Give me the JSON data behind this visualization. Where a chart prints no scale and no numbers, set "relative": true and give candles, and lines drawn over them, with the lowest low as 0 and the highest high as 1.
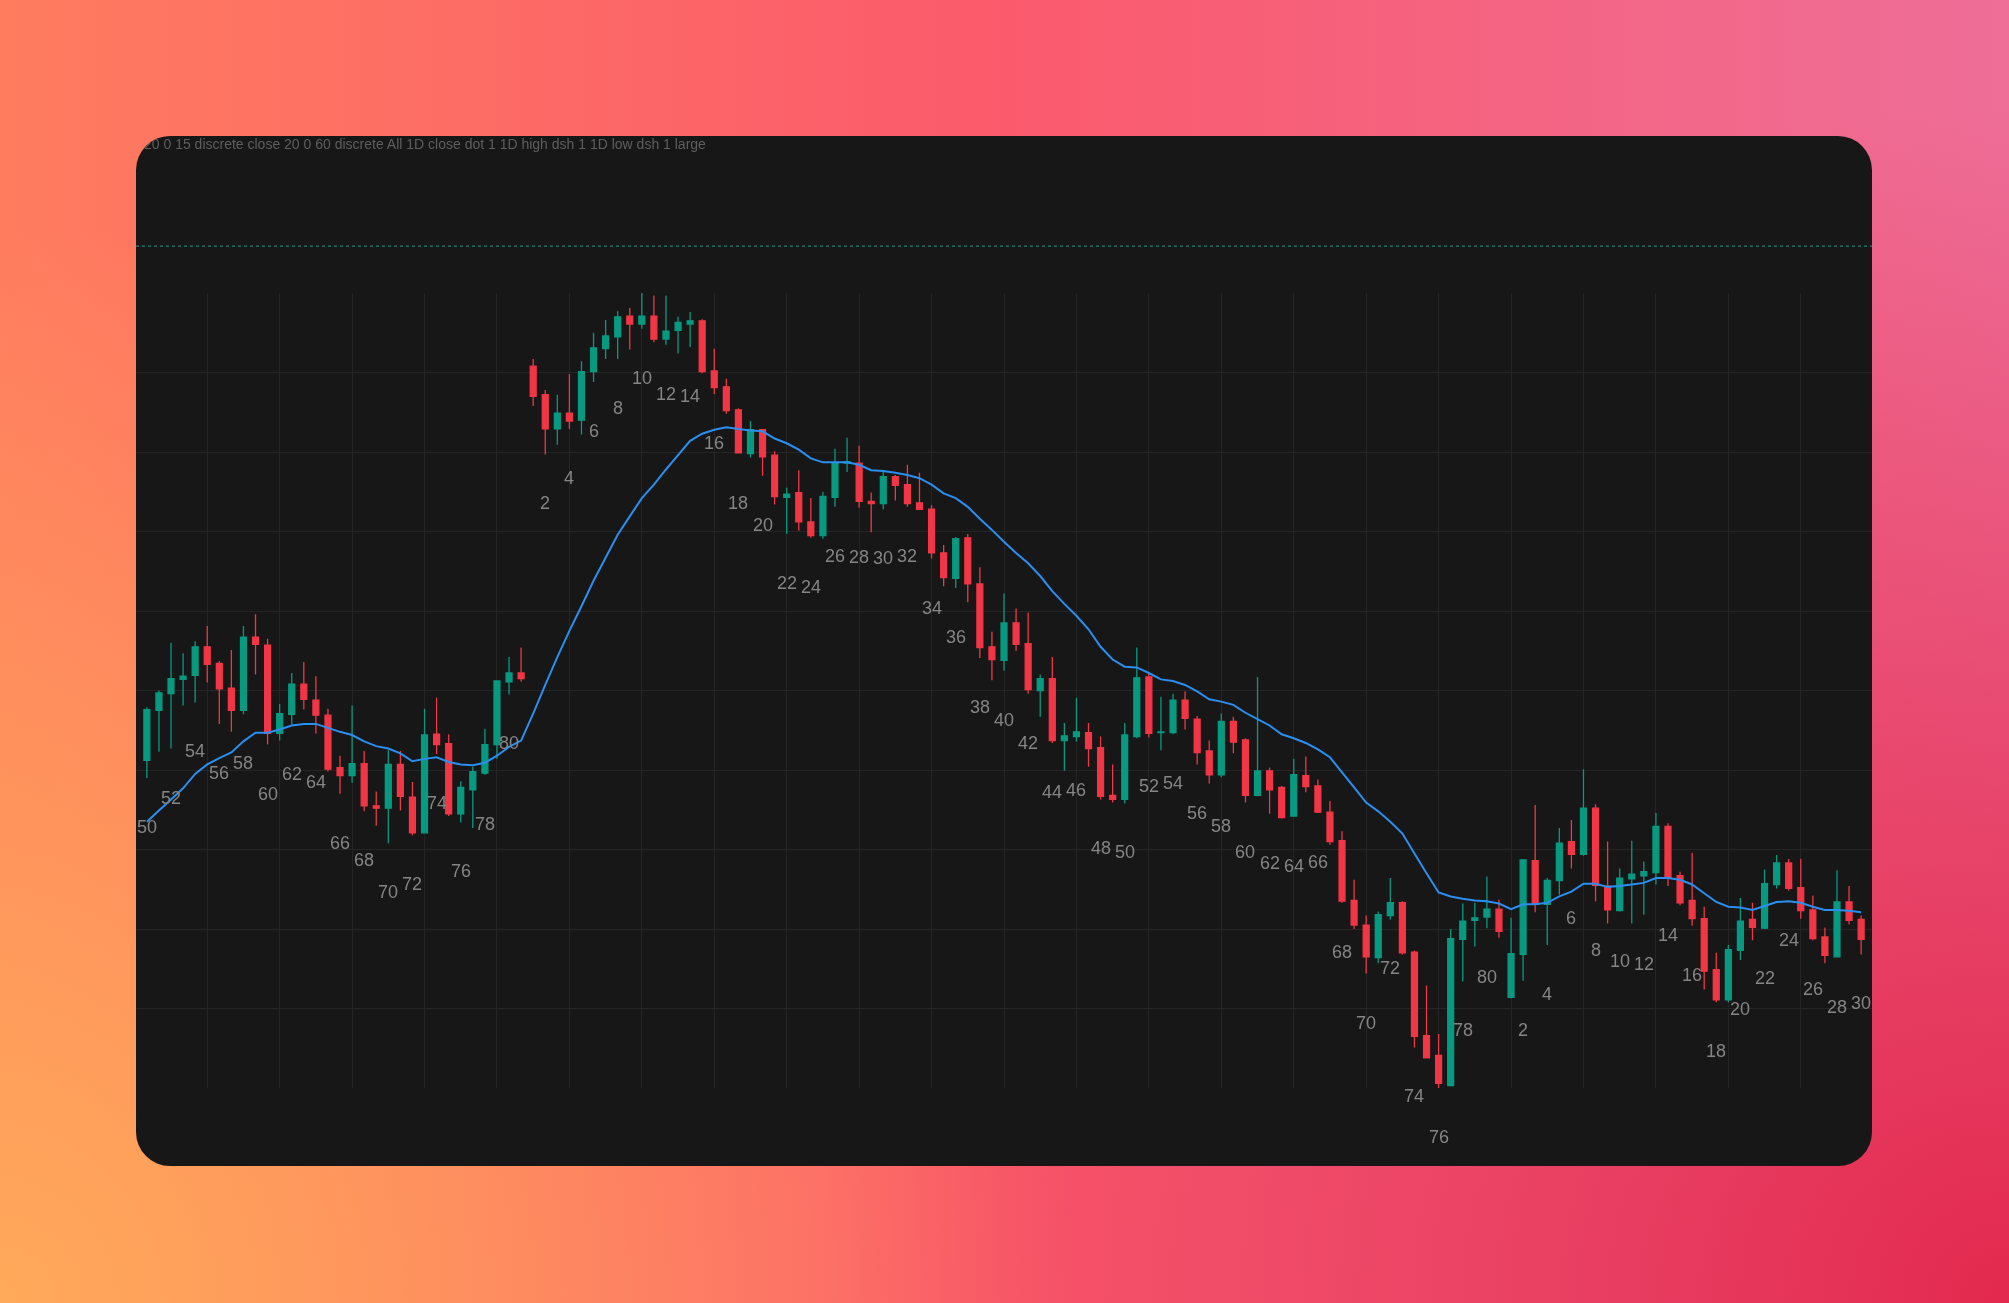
{
  "chart_data": {
    "type": "candlestick",
    "title": "20 0 15 discrete close 20 0 60 discrete All 1D close dot 1 1D high dsh 1 1D low dsh 1 large",
    "relative": true,
    "grid": true,
    "tick_labels": false,
    "categories": [
      null,
      null,
      null,
      null,
      null,
      null,
      null,
      null,
      null,
      null,
      null,
      null,
      null,
      null,
      null,
      null,
      null,
      null,
      null,
      null,
      null,
      null,
      null,
      null,
      null,
      null,
      null,
      null,
      null,
      null,
      null,
      null,
      null,
      null,
      null,
      null,
      null,
      null,
      null,
      null,
      null,
      null,
      null,
      null,
      null,
      null,
      null,
      null,
      null,
      null,
      null,
      null,
      null,
      null,
      null,
      null,
      null,
      null,
      null,
      null,
      null,
      null,
      null,
      null,
      null,
      null,
      null,
      null,
      null,
      null,
      null,
      null,
      null,
      null,
      null,
      null,
      null,
      null,
      null,
      null,
      null,
      null,
      null,
      null,
      null,
      null,
      null,
      null,
      null,
      null,
      null,
      null,
      null,
      null,
      null,
      null,
      null,
      null,
      null,
      null,
      null,
      null,
      null,
      null,
      null,
      null,
      null,
      null,
      null,
      null,
      null,
      null,
      null,
      null,
      null,
      null,
      null,
      null,
      null,
      null,
      null,
      null,
      null,
      null,
      null,
      null,
      null,
      null,
      null,
      null,
      null,
      null,
      null,
      null,
      null,
      null,
      null,
      null,
      null,
      null,
      null,
      null,
      null
    ],
    "ohlc": [
      [
        0.412,
        0.479,
        0.39,
        0.476
      ],
      [
        0.475,
        0.5,
        0.423,
        0.497
      ],
      [
        0.496,
        0.56,
        0.427,
        0.515
      ],
      [
        0.514,
        0.547,
        0.481,
        0.518
      ],
      [
        0.519,
        0.562,
        0.485,
        0.555
      ],
      [
        0.555,
        0.581,
        0.51,
        0.533
      ],
      [
        0.534,
        0.537,
        0.458,
        0.502
      ],
      [
        0.503,
        0.551,
        0.448,
        0.475
      ],
      [
        0.475,
        0.581,
        0.47,
        0.567
      ],
      [
        0.567,
        0.596,
        0.52,
        0.558
      ],
      [
        0.557,
        0.565,
        0.432,
        0.446
      ],
      [
        0.446,
        0.483,
        0.437,
        0.471
      ],
      [
        0.47,
        0.522,
        0.457,
        0.508
      ],
      [
        0.508,
        0.536,
        0.476,
        0.489
      ],
      [
        0.488,
        0.518,
        0.446,
        0.469
      ],
      [
        0.469,
        0.477,
        0.398,
        0.401
      ],
      [
        0.403,
        0.418,
        0.37,
        0.393
      ],
      [
        0.393,
        0.481,
        0.384,
        0.408
      ],
      [
        0.408,
        0.424,
        0.348,
        0.355
      ],
      [
        0.355,
        0.373,
        0.33,
        0.352
      ],
      [
        0.352,
        0.425,
        0.308,
        0.407
      ],
      [
        0.407,
        0.424,
        0.349,
        0.367
      ],
      [
        0.366,
        0.385,
        0.318,
        0.321
      ],
      [
        0.321,
        0.477,
        0.32,
        0.444
      ],
      [
        0.445,
        0.491,
        0.42,
        0.432
      ],
      [
        0.433,
        0.445,
        0.342,
        0.345
      ],
      [
        0.345,
        0.386,
        0.334,
        0.378
      ],
      [
        0.375,
        0.404,
        0.327,
        0.398
      ],
      [
        0.396,
        0.452,
        0.394,
        0.432
      ],
      [
        0.432,
        0.512,
        0.414,
        0.512
      ],
      [
        0.511,
        0.542,
        0.495,
        0.522
      ],
      [
        0.522,
        0.554,
        0.511,
        0.515
      ],
      [
        0.908,
        0.917,
        0.858,
        0.87
      ],
      [
        0.872,
        0.878,
        0.797,
        0.829
      ],
      [
        0.829,
        0.872,
        0.809,
        0.849
      ],
      [
        0.849,
        0.898,
        0.829,
        0.839
      ],
      [
        0.84,
        0.914,
        0.822,
        0.901
      ],
      [
        0.901,
        0.95,
        0.888,
        0.931
      ],
      [
        0.93,
        0.966,
        0.917,
        0.946
      ],
      [
        0.945,
        0.977,
        0.917,
        0.97
      ],
      [
        0.971,
        0.981,
        0.929,
        0.961
      ],
      [
        0.961,
        1.0,
        0.955,
        0.971
      ],
      [
        0.971,
        0.997,
        0.938,
        0.942
      ],
      [
        0.942,
        0.997,
        0.935,
        0.952
      ],
      [
        0.953,
        0.97,
        0.924,
        0.963
      ],
      [
        0.961,
        0.976,
        0.932,
        0.965
      ],
      [
        0.965,
        0.967,
        0.899,
        0.901
      ],
      [
        0.902,
        0.93,
        0.873,
        0.881
      ],
      [
        0.882,
        0.892,
        0.848,
        0.852
      ],
      [
        0.853,
        0.855,
        0.798,
        0.799
      ],
      [
        0.798,
        0.839,
        0.793,
        0.828
      ],
      [
        0.828,
        0.829,
        0.77,
        0.794
      ],
      [
        0.796,
        0.801,
        0.734,
        0.744
      ],
      [
        0.743,
        0.755,
        0.697,
        0.747
      ],
      [
        0.749,
        0.777,
        0.701,
        0.712
      ],
      [
        0.712,
        0.742,
        0.692,
        0.695
      ],
      [
        0.695,
        0.75,
        0.691,
        0.744
      ],
      [
        0.743,
        0.804,
        0.731,
        0.786
      ],
      [
        0.786,
        0.818,
        0.775,
        0.788
      ],
      [
        0.786,
        0.808,
        0.73,
        0.738
      ],
      [
        0.738,
        0.749,
        0.699,
        0.735
      ],
      [
        0.735,
        0.776,
        0.728,
        0.769
      ],
      [
        0.769,
        0.771,
        0.739,
        0.758
      ],
      [
        0.759,
        0.784,
        0.731,
        0.735
      ],
      [
        0.736,
        0.774,
        0.727,
        0.728
      ],
      [
        0.728,
        0.733,
        0.666,
        0.673
      ],
      [
        0.673,
        0.683,
        0.631,
        0.642
      ],
      [
        0.641,
        0.693,
        0.629,
        0.691
      ],
      [
        0.692,
        0.697,
        0.611,
        0.634
      ],
      [
        0.634,
        0.655,
        0.541,
        0.554
      ],
      [
        0.555,
        0.574,
        0.513,
        0.539
      ],
      [
        0.538,
        0.622,
        0.525,
        0.585
      ],
      [
        0.585,
        0.603,
        0.55,
        0.558
      ],
      [
        0.559,
        0.598,
        0.496,
        0.501
      ],
      [
        0.5,
        0.52,
        0.467,
        0.515
      ],
      [
        0.515,
        0.542,
        0.434,
        0.437
      ],
      [
        0.437,
        0.459,
        0.399,
        0.443
      ],
      [
        0.442,
        0.491,
        0.436,
        0.448
      ],
      [
        0.447,
        0.459,
        0.404,
        0.427
      ],
      [
        0.428,
        0.442,
        0.363,
        0.367
      ],
      [
        0.368,
        0.407,
        0.359,
        0.363
      ],
      [
        0.363,
        0.459,
        0.358,
        0.444
      ],
      [
        0.442,
        0.554,
        0.44,
        0.516
      ],
      [
        0.517,
        0.521,
        0.441,
        0.446
      ],
      [
        0.447,
        0.492,
        0.425,
        0.448
      ],
      [
        0.447,
        0.496,
        0.445,
        0.488
      ],
      [
        0.488,
        0.499,
        0.451,
        0.465
      ],
      [
        0.464,
        0.468,
        0.407,
        0.422
      ],
      [
        0.424,
        0.437,
        0.383,
        0.394
      ],
      [
        0.394,
        0.471,
        0.391,
        0.461
      ],
      [
        0.461,
        0.467,
        0.421,
        0.435
      ],
      [
        0.438,
        0.44,
        0.359,
        0.368
      ],
      [
        0.368,
        0.517,
        0.367,
        0.399
      ],
      [
        0.399,
        0.403,
        0.345,
        0.375
      ],
      [
        0.378,
        0.38,
        0.339,
        0.34
      ],
      [
        0.342,
        0.414,
        0.341,
        0.394
      ],
      [
        0.393,
        0.417,
        0.372,
        0.379
      ],
      [
        0.38,
        0.388,
        0.346,
        0.347
      ],
      [
        0.347,
        0.361,
        0.306,
        0.31
      ],
      [
        0.311,
        0.323,
        0.233,
        0.235
      ],
      [
        0.236,
        0.262,
        0.2,
        0.205
      ],
      [
        0.205,
        0.217,
        0.144,
        0.165
      ],
      [
        0.164,
        0.222,
        0.157,
        0.218
      ],
      [
        0.217,
        0.264,
        0.212,
        0.233
      ],
      [
        0.233,
        0.235,
        0.168,
        0.17
      ],
      [
        0.171,
        0.173,
        0.051,
        0.065
      ],
      [
        0.066,
        0.129,
        0.037,
        0.038
      ],
      [
        0.041,
        0.068,
        0.0,
        0.006
      ],
      [
        0.003,
        0.2,
        0.002,
        0.188
      ],
      [
        0.187,
        0.232,
        0.134,
        0.21
      ],
      [
        0.211,
        0.233,
        0.178,
        0.214
      ],
      [
        0.215,
        0.266,
        0.201,
        0.225
      ],
      [
        0.225,
        0.237,
        0.189,
        0.197
      ],
      [
        0.114,
        0.214,
        0.113,
        0.169
      ],
      [
        0.168,
        0.288,
        0.135,
        0.287
      ],
      [
        0.286,
        0.356,
        0.221,
        0.231
      ],
      [
        0.231,
        0.264,
        0.18,
        0.261
      ],
      [
        0.261,
        0.327,
        0.243,
        0.308
      ],
      [
        0.31,
        0.337,
        0.276,
        0.294
      ],
      [
        0.294,
        0.401,
        0.292,
        0.352
      ],
      [
        0.352,
        0.357,
        0.235,
        0.255
      ],
      [
        0.254,
        0.31,
        0.207,
        0.224
      ],
      [
        0.223,
        0.276,
        0.222,
        0.264
      ],
      [
        0.263,
        0.311,
        0.207,
        0.269
      ],
      [
        0.267,
        0.285,
        0.218,
        0.272
      ],
      [
        0.271,
        0.346,
        0.256,
        0.329
      ],
      [
        0.329,
        0.333,
        0.254,
        0.265
      ],
      [
        0.267,
        0.272,
        0.23,
        0.233
      ],
      [
        0.236,
        0.296,
        0.204,
        0.213
      ],
      [
        0.213,
        0.228,
        0.124,
        0.147
      ],
      [
        0.149,
        0.17,
        0.108,
        0.111
      ],
      [
        0.111,
        0.18,
        0.108,
        0.174
      ],
      [
        0.173,
        0.239,
        0.161,
        0.21
      ],
      [
        0.212,
        0.233,
        0.186,
        0.202
      ],
      [
        0.201,
        0.275,
        0.2,
        0.257
      ],
      [
        0.256,
        0.293,
        0.251,
        0.283
      ],
      [
        0.283,
        0.288,
        0.248,
        0.251
      ],
      [
        0.252,
        0.288,
        0.213,
        0.223
      ],
      [
        0.224,
        0.242,
        0.186,
        0.188
      ],
      [
        0.19,
        0.202,
        0.157,
        0.167
      ],
      [
        0.165,
        0.274,
        0.164,
        0.234
      ],
      [
        0.234,
        0.254,
        0.206,
        0.211
      ],
      [
        0.212,
        0.217,
        0.168,
        0.187
      ]
    ],
    "colors": [
      "#089981",
      "#089981",
      "#089981",
      "#089981",
      "#089981",
      "#f23645",
      "#f23645",
      "#f23645",
      "#089981",
      "#f23645",
      "#f23645",
      "#089981",
      "#089981",
      "#f23645",
      "#f23645",
      "#f23645",
      "#f23645",
      "#089981",
      "#f23645",
      "#f23645",
      "#089981",
      "#f23645",
      "#f23645",
      "#089981",
      "#f23645",
      "#f23645",
      "#089981",
      "#089981",
      "#089981",
      "#089981",
      "#089981",
      "#f23645",
      "#f23645",
      "#f23645",
      "#089981",
      "#f23645",
      "#089981",
      "#089981",
      "#089981",
      "#089981",
      "#f23645",
      "#089981",
      "#f23645",
      "#089981",
      "#089981",
      "#089981",
      "#f23645",
      "#f23645",
      "#f23645",
      "#f23645",
      "#089981",
      "#f23645",
      "#f23645",
      "#089981",
      "#f23645",
      "#f23645",
      "#089981",
      "#089981",
      "#089981",
      "#f23645",
      "#f23645",
      "#089981",
      "#f23645",
      "#f23645",
      "#f23645",
      "#f23645",
      "#f23645",
      "#089981",
      "#f23645",
      "#f23645",
      "#f23645",
      "#089981",
      "#f23645",
      "#f23645",
      "#089981",
      "#f23645",
      "#089981",
      "#089981",
      "#f23645",
      "#f23645",
      "#f23645",
      "#089981",
      "#089981",
      "#f23645",
      "#089981",
      "#089981",
      "#f23645",
      "#f23645",
      "#f23645",
      "#089981",
      "#f23645",
      "#f23645",
      "#089981",
      "#f23645",
      "#f23645",
      "#089981",
      "#f23645",
      "#f23645",
      "#f23645",
      "#f23645",
      "#f23645",
      "#f23645",
      "#089981",
      "#089981",
      "#f23645",
      "#f23645",
      "#f23645",
      "#f23645",
      "#089981",
      "#089981",
      "#089981",
      "#089981",
      "#f23645",
      "#089981",
      "#089981",
      "#f23645",
      "#089981",
      "#089981",
      "#f23645",
      "#089981",
      "#f23645",
      "#f23645",
      "#089981",
      "#089981",
      "#089981",
      "#089981",
      "#f23645",
      "#f23645",
      "#f23645",
      "#f23645",
      "#f23645",
      "#089981",
      "#089981",
      "#f23645",
      "#089981",
      "#089981",
      "#f23645",
      "#f23645",
      "#f23645",
      "#f23645",
      "#089981",
      "#f23645",
      "#f23645"
    ],
    "value_labels": [
      "50",
      null,
      "52",
      null,
      "54",
      null,
      "56",
      null,
      "58",
      null,
      "60",
      null,
      "62",
      null,
      "64",
      null,
      "66",
      null,
      "68",
      null,
      "70",
      null,
      "72",
      null,
      "74",
      null,
      "76",
      null,
      "78",
      null,
      "80",
      null,
      null,
      "2",
      null,
      "4",
      null,
      "6",
      null,
      "8",
      null,
      "10",
      null,
      "12",
      null,
      "14",
      null,
      "16",
      null,
      "18",
      null,
      "20",
      null,
      "22",
      null,
      "24",
      null,
      "26",
      null,
      "28",
      null,
      "30",
      null,
      "32",
      null,
      "34",
      null,
      "36",
      null,
      "38",
      null,
      "40",
      null,
      "42",
      null,
      "44",
      null,
      "46",
      null,
      "48",
      null,
      "50",
      null,
      "52",
      null,
      "54",
      null,
      "56",
      null,
      "58",
      null,
      "60",
      null,
      "62",
      null,
      "64",
      null,
      "66",
      null,
      "68",
      null,
      "70",
      null,
      "72",
      null,
      "74",
      null,
      "76",
      null,
      "78",
      null,
      "80",
      null,
      null,
      "2",
      null,
      "4",
      null,
      "6",
      null,
      "8",
      null,
      "10",
      null,
      "12",
      null,
      "14",
      null,
      "16",
      null,
      "18",
      null,
      "20",
      null,
      "22",
      null,
      "24",
      null,
      "26",
      null,
      "28",
      null,
      "30"
    ],
    "series": [
      {
        "type": "line",
        "color": "#2a8ff0",
        "values": [
          0.335,
          0.349,
          0.363,
          0.377,
          0.395,
          0.407,
          0.415,
          0.422,
          0.436,
          0.447,
          0.447,
          0.451,
          0.456,
          0.458,
          0.458,
          0.453,
          0.448,
          0.444,
          0.436,
          0.43,
          0.427,
          0.421,
          0.411,
          0.414,
          0.416,
          0.41,
          0.407,
          0.406,
          0.409,
          0.418,
          0.429,
          0.437,
          0.471,
          0.507,
          0.542,
          0.575,
          0.606,
          0.638,
          0.667,
          0.696,
          0.719,
          0.742,
          0.759,
          0.778,
          0.796,
          0.814,
          0.823,
          0.828,
          0.831,
          0.829,
          0.827,
          0.826,
          0.817,
          0.811,
          0.803,
          0.792,
          0.787,
          0.787,
          0.787,
          0.784,
          0.777,
          0.776,
          0.774,
          0.771,
          0.767,
          0.759,
          0.748,
          0.742,
          0.731,
          0.716,
          0.702,
          0.687,
          0.673,
          0.66,
          0.644,
          0.625,
          0.609,
          0.594,
          0.577,
          0.555,
          0.539,
          0.53,
          0.529,
          0.522,
          0.514,
          0.512,
          0.507,
          0.499,
          0.489,
          0.486,
          0.482,
          0.472,
          0.464,
          0.456,
          0.445,
          0.44,
          0.434,
          0.426,
          0.416,
          0.397,
          0.378,
          0.359,
          0.348,
          0.335,
          0.32,
          0.295,
          0.27,
          0.246,
          0.241,
          0.238,
          0.236,
          0.235,
          0.232,
          0.225,
          0.231,
          0.231,
          0.233,
          0.241,
          0.247,
          0.257,
          0.257,
          0.253,
          0.254,
          0.256,
          0.258,
          0.264,
          0.264,
          0.262,
          0.256,
          0.245,
          0.234,
          0.228,
          0.227,
          0.224,
          0.229,
          0.234,
          0.235,
          0.233,
          0.228,
          0.224,
          0.224,
          0.223,
          0.221
        ]
      }
    ],
    "ref_lines": [
      {
        "axis": "y",
        "value": 1.059,
        "color": "#1f9e88",
        "line_style": "dotted"
      }
    ]
  }
}
